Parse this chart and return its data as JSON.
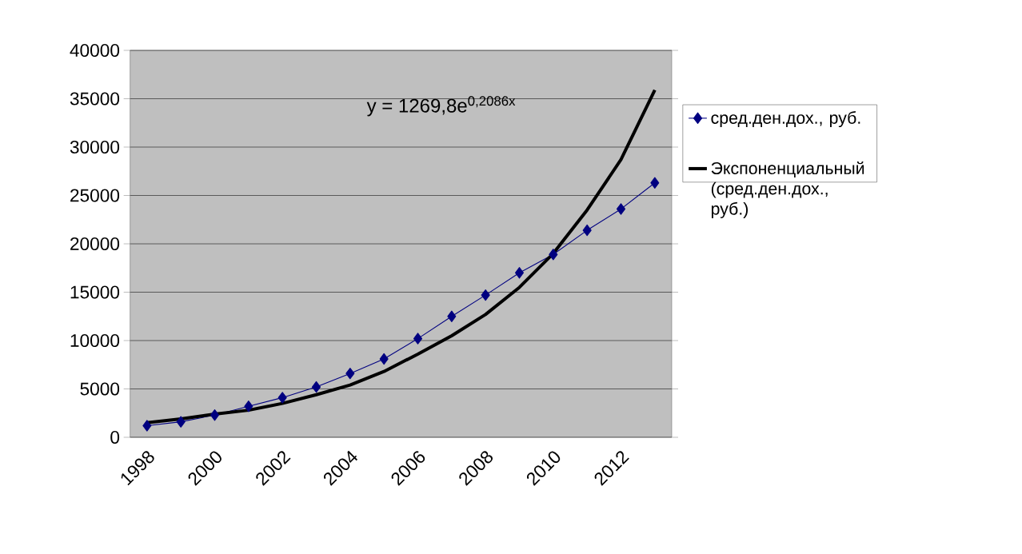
{
  "chart_data": {
    "type": "line",
    "categories": [
      "1998",
      null,
      "2000",
      null,
      "2002",
      null,
      "2004",
      null,
      "2006",
      null,
      "2008",
      null,
      "2010",
      null,
      "2012",
      null
    ],
    "series": [
      {
        "name": "сред.ден.дох., руб.",
        "color": "#000080",
        "marker": "diamond",
        "values": [
          1200,
          1600,
          2300,
          3200,
          4100,
          5200,
          6600,
          8100,
          10200,
          12500,
          14700,
          17000,
          18900,
          21400,
          23600,
          26300
        ]
      },
      {
        "name": "Экспоненциальный (сред.ден.дох., руб.)",
        "color": "#000000",
        "marker": "none",
        "values": [
          1500,
          1900,
          2400,
          2800,
          3500,
          4400,
          5400,
          6800,
          8600,
          10500,
          12700,
          15500,
          19000,
          23500,
          28700,
          35900
        ]
      }
    ],
    "ylim": [
      0,
      40000
    ],
    "yticks": [
      0,
      5000,
      10000,
      15000,
      20000,
      25000,
      30000,
      35000,
      40000
    ],
    "grid": "y",
    "legend": "right",
    "line_style": "solid",
    "annotations": [
      "y = 1269,8e$^{0,2086x}$"
    ]
  }
}
